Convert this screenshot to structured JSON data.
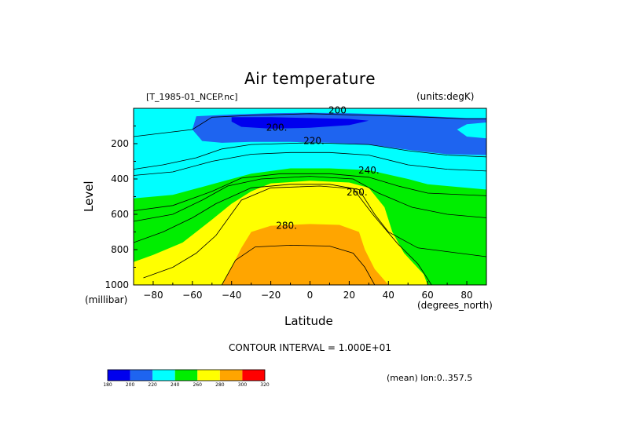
{
  "chart_data": {
    "type": "heatmap",
    "subtype": "filled-contour",
    "title": "Air temperature",
    "file_label": "[T_1985-01_NCEP.nc]",
    "units_label": "(units:degK)",
    "xlabel": "Latitude",
    "xlabel_units": "(degrees_north)",
    "ylabel": "Level",
    "ylabel_units": "(millibar)",
    "xlim": [
      -90,
      90
    ],
    "ylim": [
      1000,
      0
    ],
    "x_ticks": [
      -80,
      -60,
      -40,
      -20,
      0,
      20,
      40,
      60,
      80
    ],
    "y_ticks": [
      200,
      400,
      600,
      800,
      1000
    ],
    "contour_interval_text": "CONTOUR INTERVAL = 1.000E+01",
    "footer_text": "(mean) lon:0..357.5",
    "levels": [
      180,
      200,
      220,
      240,
      260,
      280,
      300,
      320
    ],
    "level_colors": [
      "#0000ee",
      "#1e64f0",
      "#00ffff",
      "#00ee00",
      "#ffff00",
      "#ffa500",
      "#ff0000"
    ],
    "contour_labels": [
      {
        "text": "200",
        "lat": 14,
        "lev": 10
      },
      {
        "text": "200.",
        "lat": -17,
        "lev": 108
      },
      {
        "text": "220.",
        "lat": 2,
        "lev": 185
      },
      {
        "text": "240.",
        "lat": 30,
        "lev": 350
      },
      {
        "text": "260.",
        "lat": 24,
        "lev": 475
      },
      {
        "text": "280.",
        "lat": -12,
        "lev": 665
      }
    ],
    "data_gap_surface_pressure": [
      {
        "lat": -90,
        "lev": 600
      },
      {
        "lat": -88,
        "lev": 680
      },
      {
        "lat": -86,
        "lev": 760
      },
      {
        "lat": -84,
        "lev": 840
      },
      {
        "lat": -82,
        "lev": 930
      },
      {
        "lat": -80,
        "lev": 1000
      }
    ],
    "bands": [
      {
        "value": 230,
        "outline": [
          [
            -90,
            0
          ],
          [
            90,
            0
          ],
          [
            90,
            1000
          ],
          [
            -90,
            1000
          ]
        ]
      },
      {
        "value": 210,
        "outline": [
          [
            -58,
            45
          ],
          [
            -40,
            35
          ],
          [
            -20,
            28
          ],
          [
            0,
            25
          ],
          [
            20,
            28
          ],
          [
            40,
            35
          ],
          [
            60,
            45
          ],
          [
            80,
            55
          ],
          [
            90,
            55
          ],
          [
            90,
            80
          ],
          [
            80,
            90
          ],
          [
            75,
            120
          ],
          [
            80,
            160
          ],
          [
            90,
            170
          ],
          [
            90,
            265
          ],
          [
            70,
            260
          ],
          [
            50,
            235
          ],
          [
            30,
            205
          ],
          [
            10,
            195
          ],
          [
            -10,
            190
          ],
          [
            -30,
            190
          ],
          [
            -45,
            195
          ],
          [
            -55,
            185
          ],
          [
            -60,
            120
          ]
        ]
      },
      {
        "value": 190,
        "outline": [
          [
            -40,
            50
          ],
          [
            -20,
            50
          ],
          [
            0,
            55
          ],
          [
            20,
            60
          ],
          [
            30,
            70
          ],
          [
            20,
            95
          ],
          [
            0,
            110
          ],
          [
            -20,
            115
          ],
          [
            -35,
            105
          ],
          [
            -40,
            75
          ]
        ]
      },
      {
        "value": 250,
        "outline": [
          [
            -90,
            510
          ],
          [
            -70,
            490
          ],
          [
            -50,
            430
          ],
          [
            -30,
            370
          ],
          [
            -10,
            340
          ],
          [
            10,
            340
          ],
          [
            30,
            350
          ],
          [
            50,
            400
          ],
          [
            60,
            430
          ],
          [
            80,
            450
          ],
          [
            90,
            460
          ],
          [
            90,
            1000
          ],
          [
            -90,
            1000
          ]
        ]
      },
      {
        "value": 270,
        "outline": [
          [
            -90,
            870
          ],
          [
            -80,
            830
          ],
          [
            -65,
            760
          ],
          [
            -50,
            630
          ],
          [
            -40,
            540
          ],
          [
            -30,
            470
          ],
          [
            -20,
            425
          ],
          [
            0,
            410
          ],
          [
            20,
            420
          ],
          [
            30,
            450
          ],
          [
            38,
            560
          ],
          [
            42,
            700
          ],
          [
            48,
            820
          ],
          [
            58,
            940
          ],
          [
            60,
            1000
          ],
          [
            -90,
            1000
          ]
        ]
      },
      {
        "value": 290,
        "outline": [
          [
            -45,
            1000
          ],
          [
            -40,
            900
          ],
          [
            -35,
            790
          ],
          [
            -30,
            700
          ],
          [
            -20,
            665
          ],
          [
            0,
            655
          ],
          [
            15,
            660
          ],
          [
            25,
            700
          ],
          [
            28,
            800
          ],
          [
            33,
            910
          ],
          [
            40,
            1000
          ]
        ]
      }
    ],
    "contour_lines": [
      [
        [
          -90,
          160
        ],
        [
          -60,
          120
        ],
        [
          -50,
          50
        ],
        [
          -30,
          40
        ],
        [
          0,
          30
        ],
        [
          30,
          40
        ],
        [
          60,
          50
        ],
        [
          80,
          60
        ],
        [
          90,
          60
        ]
      ],
      [
        [
          -90,
          345
        ],
        [
          -75,
          320
        ],
        [
          -58,
          280
        ],
        [
          -45,
          230
        ],
        [
          -30,
          205
        ],
        [
          0,
          195
        ],
        [
          30,
          205
        ],
        [
          50,
          240
        ],
        [
          70,
          265
        ],
        [
          90,
          275
        ]
      ],
      [
        [
          -90,
          380
        ],
        [
          -70,
          360
        ],
        [
          -50,
          300
        ],
        [
          -30,
          260
        ],
        [
          -10,
          250
        ],
        [
          10,
          250
        ],
        [
          30,
          265
        ],
        [
          50,
          320
        ],
        [
          70,
          345
        ],
        [
          90,
          355
        ]
      ],
      [
        [
          -90,
          580
        ],
        [
          -70,
          550
        ],
        [
          -50,
          470
        ],
        [
          -35,
          395
        ],
        [
          -15,
          370
        ],
        [
          10,
          370
        ],
        [
          30,
          390
        ],
        [
          45,
          440
        ],
        [
          60,
          480
        ],
        [
          90,
          495
        ]
      ],
      [
        [
          -90,
          640
        ],
        [
          -70,
          600
        ],
        [
          -55,
          520
        ],
        [
          -42,
          440
        ],
        [
          -25,
          400
        ],
        [
          0,
          385
        ],
        [
          22,
          400
        ],
        [
          35,
          480
        ],
        [
          52,
          560
        ],
        [
          70,
          600
        ],
        [
          90,
          620
        ]
      ],
      [
        [
          -90,
          760
        ],
        [
          -75,
          700
        ],
        [
          -60,
          620
        ],
        [
          -48,
          540
        ],
        [
          -30,
          450
        ],
        [
          -10,
          430
        ],
        [
          10,
          430
        ],
        [
          25,
          460
        ],
        [
          33,
          600
        ],
        [
          40,
          700
        ],
        [
          55,
          790
        ],
        [
          90,
          840
        ]
      ],
      [
        [
          -85,
          960
        ],
        [
          -70,
          900
        ],
        [
          -58,
          820
        ],
        [
          -48,
          720
        ],
        [
          -35,
          520
        ],
        [
          -20,
          450
        ],
        [
          5,
          440
        ],
        [
          22,
          455
        ],
        [
          32,
          600
        ],
        [
          45,
          770
        ],
        [
          55,
          880
        ],
        [
          62,
          1000
        ]
      ],
      [
        [
          -45,
          1000
        ],
        [
          -38,
          860
        ],
        [
          -28,
          785
        ],
        [
          -10,
          775
        ],
        [
          10,
          780
        ],
        [
          22,
          820
        ],
        [
          28,
          900
        ],
        [
          33,
          1000
        ]
      ]
    ]
  }
}
